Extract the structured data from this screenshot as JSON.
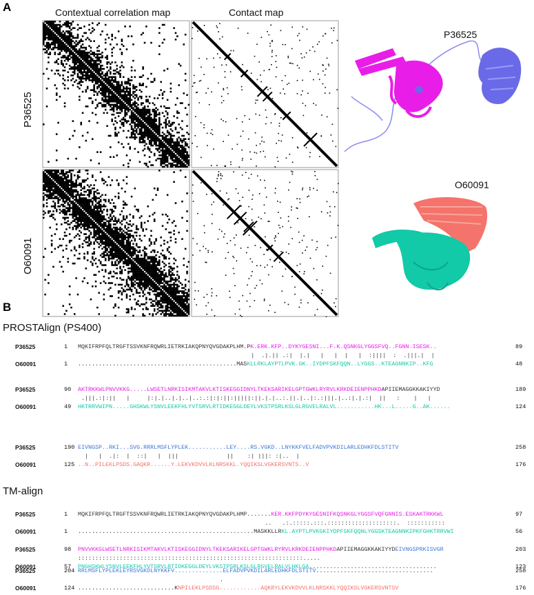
{
  "panel_a": {
    "label": "A",
    "map_titles": [
      "Contextual correlation map",
      "Contact map"
    ],
    "proteins": [
      "P36525",
      "O60091"
    ]
  },
  "panel_b": {
    "label": "B",
    "alignments": [
      {
        "title": "PROSTAlign (PS400)",
        "blocks": [
          {
            "top": {
              "id": "P36525",
              "start": 1,
              "end": 89,
              "segments": [
                {
                  "text": "MQKIFRPFQLTRGFTSSVKNFRQWRLIETRKIAKQPNYQVGDAKPLHM.P",
                  "color": "#333333"
                },
                {
                  "text": "K.ERK.KFP..DYKYGESNI...F.K.QSNKGLYGGSFVQ..FGNN.ISESK..",
                  "color": "#e81ee8"
                }
              ]
            },
            "match": "                                                  |  .|.|| .:|  |.|   |   |  |   |  :||||  :  .|||.|  |",
            "bottom": {
              "id": "O60091",
              "start": 1,
              "end": 48,
              "segments": [
                {
                  "text": "..............................................MAS",
                  "color": "#333333"
                },
                {
                  "text": "KLLRKLAYPTLPVK.GK..IYDPFSKFQQN..LYGGS..KTEAGNNKIP..KFG",
                  "color": "#12c9a8"
                }
              ]
            }
          },
          {
            "top": {
              "id": "P36525",
              "start": 90,
              "end": 189,
              "segments": [
                {
                  "text": "AKTRKKWLPNVVKKG.....LWSETLNRKISIKMTAKVLKTISKEGGIDNYLTKEKSARIKELGPTGWKLRYRVLKRKDEIENPPHKD",
                  "color": "#e81ee8"
                },
                {
                  "text": "APIIEMAGGKKAKIYYD",
                  "color": "#333333"
                }
              ]
            },
            "match": " .|||.:|:||   |     |:|.|..|.|..|..:.:|:|:||:|||||:||.|.|..:.||.|..|:.:|||.|..:|.|.:|  ||   :    |   |",
            "bottom": {
              "id": "O60091",
              "start": 49,
              "end": 124,
              "segments": [
                {
                  "text": "HKTRRVWIPN.....GHSKWLYSNVLEEKFHLYVTSRVLRTIDKEGGLDEYLVKSTPSRLKSLGLRGVELRALVL...........HK...L.....G..AK......",
                  "color": "#12c9a8"
                }
              ]
            }
          },
          {
            "top": {
              "id": "P36525",
              "start": 190,
              "end": 258,
              "segments": [
                {
                  "text": "EIVNGSP..RKI...SVG.RRRLMSFLYPLEK...........LEY....RS.VGKD..LNYKKFVELFADVPVKDILARLEDHKFDLSTITV",
                  "color": "#3c78d8"
                }
              ]
            },
            "match": "  |   |  .|:  |  ::|   |  |||              ||    :| |||: :|..  |",
            "bottom": {
              "id": "O60091",
              "start": 125,
              "end": 176,
              "segments": [
                {
                  "text": "..N..PILEKLPSDS.GAQKR......Y.LEKVKDVVLKLNRSKKL.YQQIKSLVGKERSVNTS..V",
                  "color": "#f4736b"
                }
              ]
            }
          }
        ]
      },
      {
        "title": "TM-align",
        "blocks": [
          {
            "top": {
              "id": "P36525",
              "start": 1,
              "end": 97,
              "segments": [
                {
                  "text": "MQKIFRPFQLTRGFTSSVKNFRQWRLIETRKIAKQPNYQVGDAKPLHMP.......",
                  "color": "#333333"
                },
                {
                  "text": "KER.KKFPDYKYGESNIFKQSNKGLYGGSFVQFGNNIS.ESKAKTRKKWL",
                  "color": "#e81ee8"
                }
              ]
            },
            "match": "                                                      ..   .:.:::::.:::.::::::::::::::::::::.  :::::::::::",
            "bottom": {
              "id": "O60091",
              "start": 1,
              "end": 56,
              "segments": [
                {
                  "text": "...................................................MASKKLLR",
                  "color": "#333333"
                },
                {
                  "text": "KL.AYPTLPVKGKIYDPFSKFQQNLYGGSKTEAGNNKIPKFGHKTRRVWI",
                  "color": "#12c9a8"
                }
              ]
            }
          },
          {
            "top": {
              "id": "P36525",
              "start": 98,
              "end": 203,
              "segments": [
                {
                  "text": "PNVVKKGLWSETLNRKISIKMTAKVLKTISKEGGIDNYLTKEKSARIKELGPTGWKLRYRVLKRKDEIENPPHKD",
                  "color": "#e81ee8"
                },
                {
                  "text": "APIIEMAGGKKAKIYYD",
                  "color": "#333333"
                },
                {
                  "text": "EIVNGSPRKISVGR",
                  "color": "#3c78d8"
                }
              ]
            },
            "match": ":::::::::::::::::::::::::::::::::::::::::::::::::::::::::::::::::.....",
            "bottom": {
              "id": "O60091",
              "start": 57,
              "end": 123,
              "segments": [
                {
                  "text": "PNGHSKWLYSNVLEEKFHLYVTSRVLRTIDKEGGLDEYLVKSTPSRLKSLGLRGVELRALVLHKLGA",
                  "color": "#12c9a8"
                },
                {
                  "text": ".....................................",
                  "color": "#333333"
                }
              ]
            }
          },
          {
            "top": {
              "id": "P36525",
              "start": 204,
              "end": 258,
              "segments": [
                {
                  "text": "RRLMSFLYPLEKLEYRSVGKDLNYKKFV..............ELFADVPVKDILARLEDHKFDLSTITV",
                  "color": "#3c78d8"
                },
                {
                  "text": "..................................",
                  "color": "#333333"
                }
              ]
            },
            "match": "                                         .",
            "bottom": {
              "id": "O60091",
              "start": 124,
              "end": 176,
              "segments": [
                {
                  "text": "............................K",
                  "color": "#333333"
                },
                {
                  "text": "NPILEKLPSDSG............AQKRYLEKVKDVVLKLNRSKKLYQQIKSLVGKERSVNTSV",
                  "color": "#f4736b"
                }
              ]
            }
          }
        ]
      }
    ]
  }
}
